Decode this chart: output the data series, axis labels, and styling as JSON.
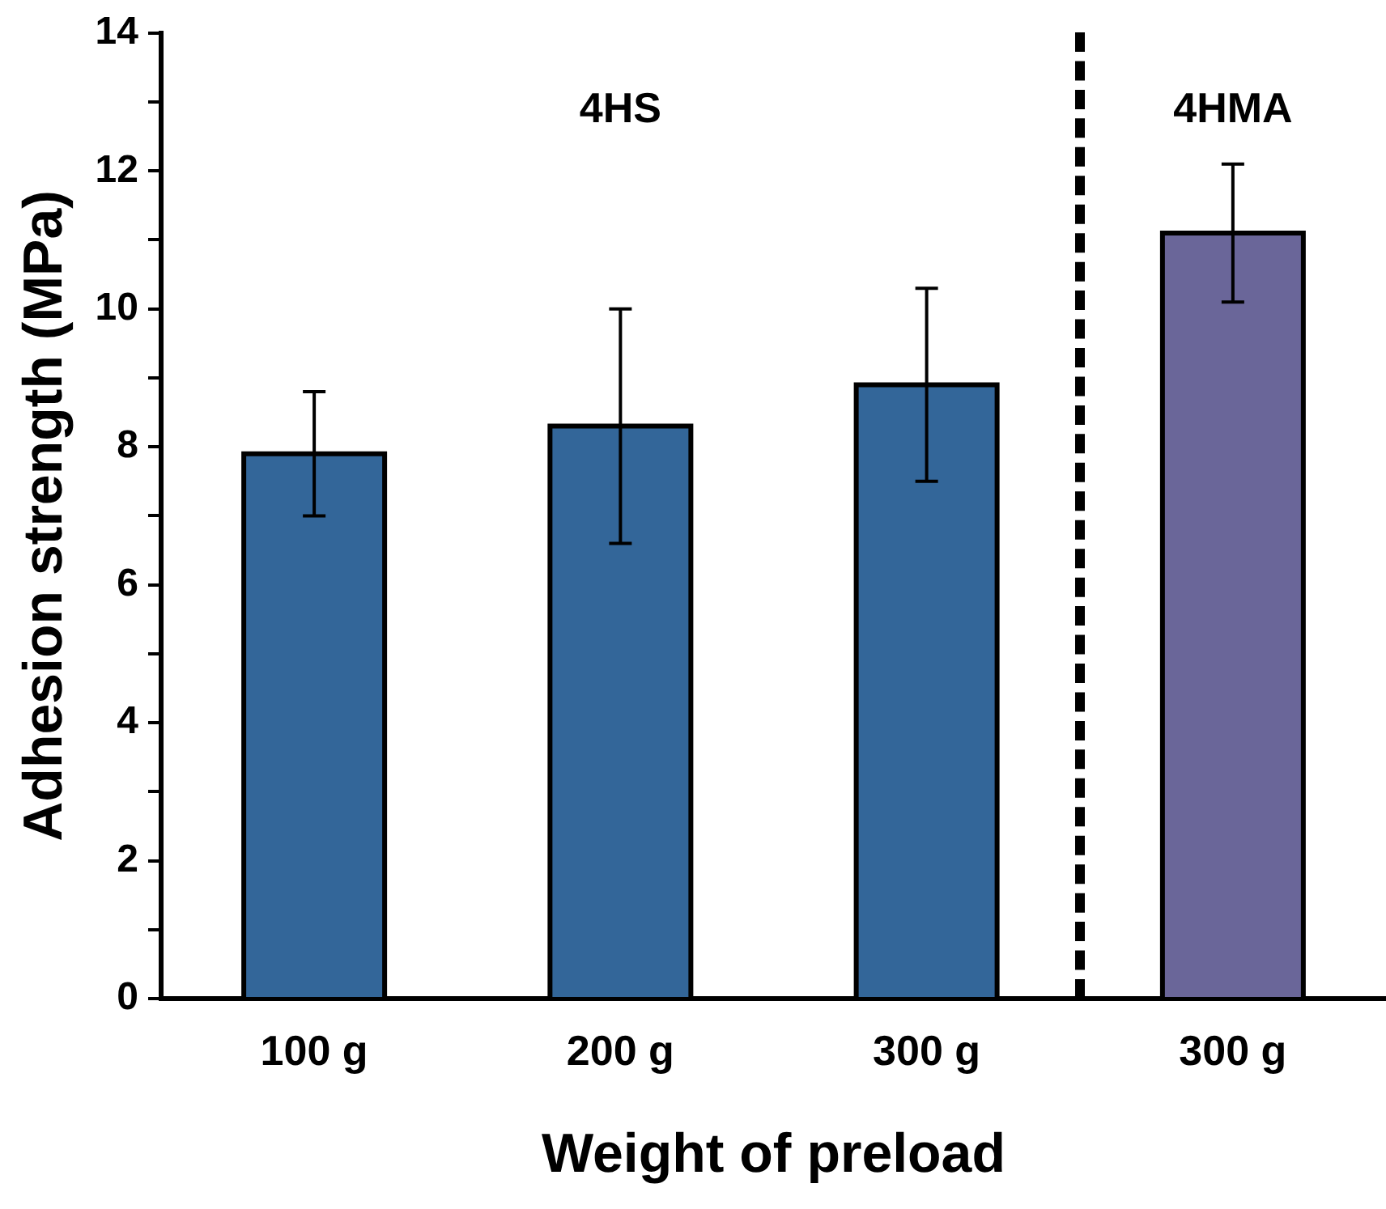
{
  "chart_data": {
    "type": "bar",
    "xlabel": "Weight of preload",
    "ylabel": "Adhesion strength (MPa)",
    "categories": [
      "100 g",
      "200 g",
      "300 g",
      "300 g"
    ],
    "values": [
      7.9,
      8.3,
      8.9,
      11.1
    ],
    "colors": [
      "#336699",
      "#336699",
      "#336699",
      "#6a6699"
    ],
    "errors": [
      0.9,
      1.7,
      1.4,
      1.0
    ],
    "ylim": [
      0,
      14
    ],
    "yticks": [
      0,
      {
        "value": 1,
        "label": null
      },
      2,
      {
        "value": 3,
        "label": null
      },
      4,
      {
        "value": 5,
        "label": null
      },
      6,
      {
        "value": 7,
        "label": null
      },
      8,
      {
        "value": 9,
        "label": null
      },
      10,
      {
        "value": 11,
        "label": null
      },
      12,
      {
        "value": 13,
        "label": null
      },
      14
    ],
    "annotations": [
      "4HS",
      "4HMA"
    ],
    "grid": false,
    "legend": false
  }
}
